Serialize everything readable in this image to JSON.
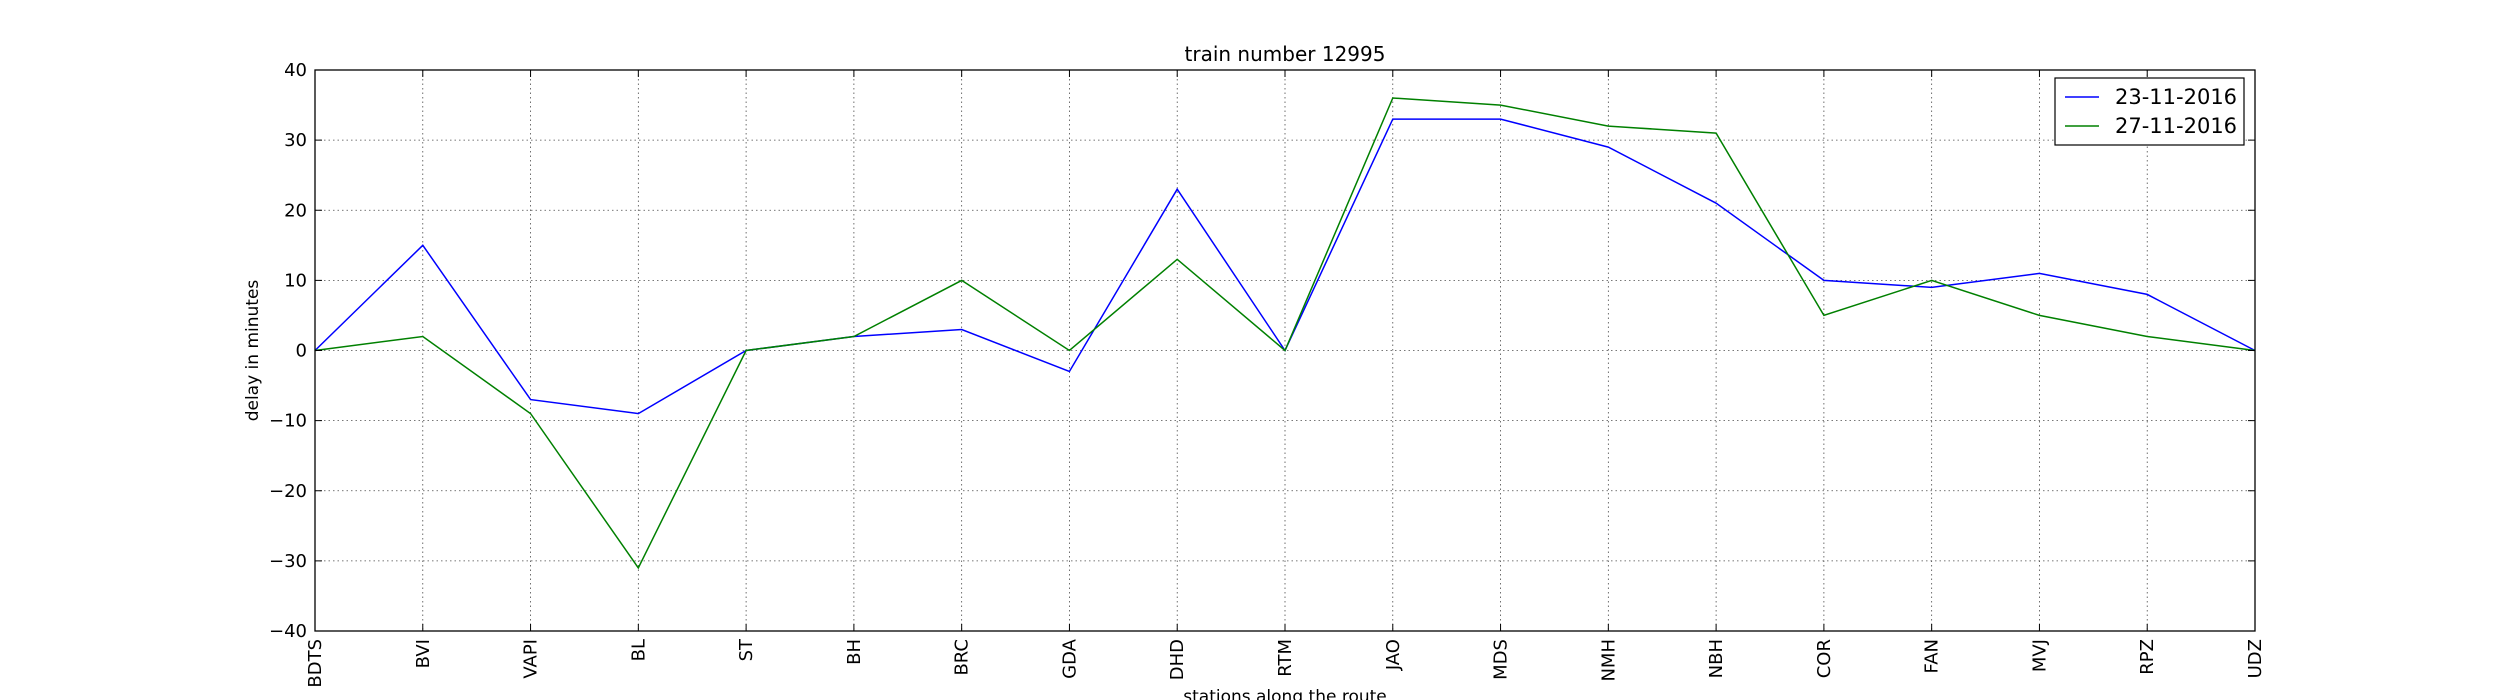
{
  "chart_data": {
    "type": "line",
    "title": "train number 12995",
    "xlabel": "stations along the route",
    "ylabel": "delay in minutes",
    "categories": [
      "BDTS",
      "BVI",
      "VAPI",
      "BL",
      "ST",
      "BH",
      "BRC",
      "GDA",
      "DHD",
      "RTM",
      "JAO",
      "MDS",
      "NMH",
      "NBH",
      "COR",
      "FAN",
      "MVJ",
      "RPZ",
      "UDZ"
    ],
    "ylim": [
      -40,
      40
    ],
    "yticks": [
      -40,
      -30,
      -20,
      -10,
      0,
      10,
      20,
      30,
      40
    ],
    "ytick_labels": [
      "−40",
      "−30",
      "−20",
      "−10",
      "0",
      "10",
      "20",
      "30",
      "40"
    ],
    "grid": true,
    "legend_position": "top-right",
    "series": [
      {
        "name": "23-11-2016",
        "color": "#0000ff",
        "values": [
          0,
          15,
          -7,
          -9,
          0,
          2,
          3,
          -3,
          23,
          0,
          33,
          33,
          29,
          21,
          10,
          9,
          11,
          8,
          0
        ]
      },
      {
        "name": "27-11-2016",
        "color": "#008000",
        "values": [
          0,
          2,
          -9,
          -31,
          0,
          2,
          10,
          0,
          13,
          0,
          36,
          35,
          32,
          31,
          5,
          10,
          5,
          2,
          0
        ]
      }
    ]
  }
}
